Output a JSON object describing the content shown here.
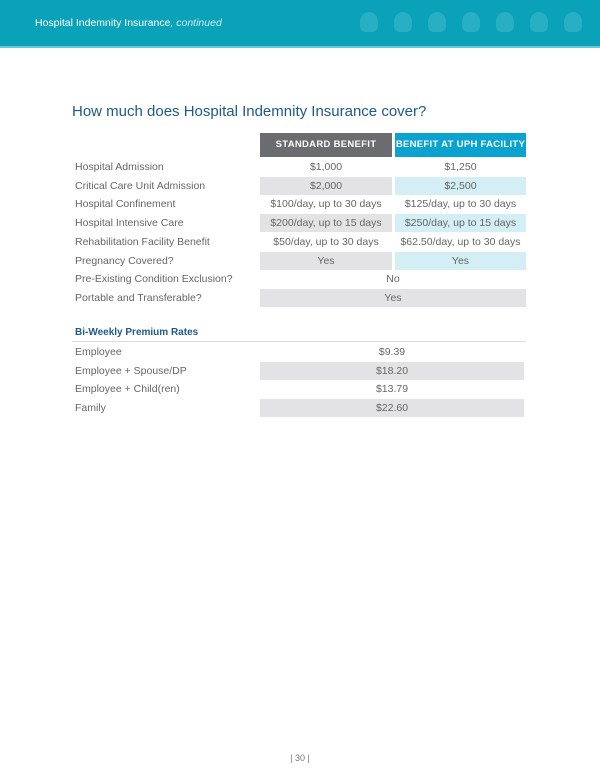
{
  "header": {
    "title": "Hospital Indemnity Insurance",
    "subtitle": ", continued",
    "icons": [
      "coins-hand-icon",
      "head-heart-icon",
      "rocket-icon",
      "piggy-bank-icon",
      "trophy-icon",
      "signpost-icon",
      "coins-hand-icon"
    ]
  },
  "coverage": {
    "title": "How much does Hospital Indemnity Insurance cover?",
    "columns": [
      "STANDARD BENEFIT",
      "BENEFIT AT UPH FACILITY"
    ],
    "column_colors": {
      "standard": "#6b6c70",
      "uph": "#0aa2cf"
    },
    "rows": [
      {
        "label": "Hospital Admission",
        "standard": "$1,000",
        "uph": "$1,250"
      },
      {
        "label": "Critical Care Unit Admission",
        "standard": "$2,000",
        "uph": "$2,500"
      },
      {
        "label": "Hospital Confinement",
        "standard": "$100/day, up to 30 days",
        "uph": "$125/day, up to 30 days"
      },
      {
        "label": "Hospital Intensive Care",
        "standard": "$200/day, up to 15 days",
        "uph": "$250/day, up to 15 days"
      },
      {
        "label": "Rehabilitation Facility Benefit",
        "standard": "$50/day, up to 30 days",
        "uph": "$62.50/day, up to 30 days"
      },
      {
        "label": "Pregnancy Covered?",
        "standard": "Yes",
        "uph": "Yes"
      },
      {
        "label": "Pre-Existing Condition Exclusion?",
        "both": "No"
      },
      {
        "label": "Portable and Transferable?",
        "both": "Yes"
      }
    ]
  },
  "premiums": {
    "title": "Bi-Weekly Premium Rates",
    "rows": [
      {
        "label": "Employee",
        "value": "$9.39"
      },
      {
        "label": "Employee + Spouse/DP",
        "value": "$18.20"
      },
      {
        "label": "Employee + Child(ren)",
        "value": "$13.79"
      },
      {
        "label": "Family",
        "value": "$22.60"
      }
    ]
  },
  "footer": {
    "page_number": "| 30 |"
  }
}
